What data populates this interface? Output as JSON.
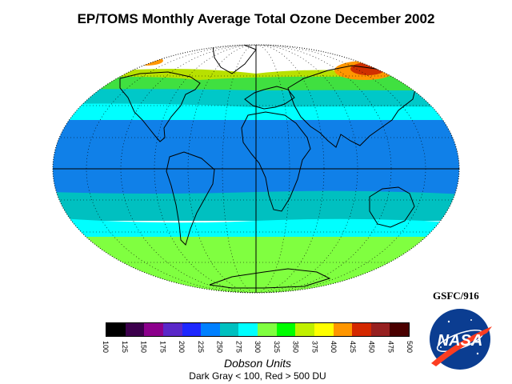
{
  "header": {
    "title": "EP/TOMS Monthly Average Total Ozone December 2002"
  },
  "map": {
    "projection": "Hammer-Aitoff (global)",
    "gridlines": true,
    "bands": [
      {
        "lat_from": 90,
        "lat_to": 72,
        "du_class": "no data (polar night)",
        "color": "#ffffff"
      },
      {
        "lat_from": 72,
        "lat_to": 60,
        "du_class": "350-400",
        "color": "#b8e000"
      },
      {
        "lat_from": 60,
        "lat_to": 48,
        "du_class": "275-325",
        "color": "#00c8c8"
      },
      {
        "lat_from": 48,
        "lat_to": 30,
        "du_class": "300-325",
        "color": "#00ffff"
      },
      {
        "lat_from": 30,
        "lat_to": -20,
        "du_class": "250-275",
        "color": "#1080e8"
      },
      {
        "lat_from": -20,
        "lat_to": -35,
        "du_class": "275-300",
        "color": "#00c0c0"
      },
      {
        "lat_from": -35,
        "lat_to": -48,
        "du_class": "300-325",
        "color": "#00ffff"
      },
      {
        "lat_from": -48,
        "lat_to": -90,
        "du_class": "325-350",
        "color": "#80ff40"
      }
    ],
    "hotspots": [
      {
        "region": "Eastern Siberia",
        "du_class": "425-450",
        "color": "#d03000"
      },
      {
        "region": "Western Arctic",
        "du_class": "400-425",
        "color": "#ff8000"
      }
    ]
  },
  "credit": {
    "text": "GSFC/916"
  },
  "legend": {
    "ticks": [
      "100",
      "125",
      "150",
      "175",
      "200",
      "225",
      "250",
      "275",
      "300",
      "325",
      "350",
      "375",
      "400",
      "425",
      "450",
      "475",
      "500"
    ],
    "colors": [
      "#000000",
      "#3c004c",
      "#8c008c",
      "#5a28c8",
      "#1e28ff",
      "#0080ff",
      "#00c0c0",
      "#00ffff",
      "#80ff40",
      "#00ff00",
      "#c0f000",
      "#ffff00",
      "#ff9600",
      "#d42800",
      "#962020",
      "#4a0000"
    ],
    "unit_label": "Dobson Units",
    "note": "Dark Gray < 100, Red > 500 DU"
  },
  "logo": {
    "text": "NASA"
  }
}
